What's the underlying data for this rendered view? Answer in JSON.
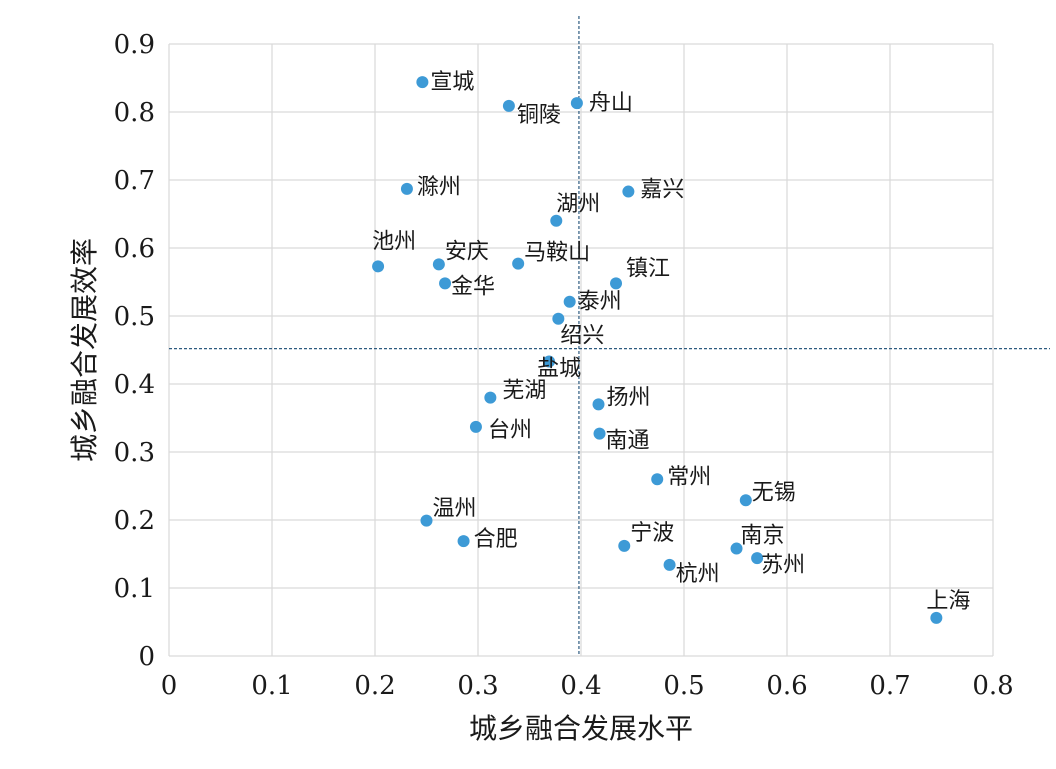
{
  "chart_data": {
    "type": "scatter",
    "xlabel": "城乡融合发展水平",
    "ylabel": "城乡融合发展效率",
    "xlim": [
      0,
      0.8
    ],
    "ylim": [
      0,
      0.9
    ],
    "xticks": [
      0,
      0.1,
      0.2,
      0.3,
      0.4,
      0.5,
      0.6,
      0.7,
      0.8
    ],
    "xtick_labels": [
      "0",
      "0.1",
      "0.2",
      "0.3",
      "0.4",
      "0.5",
      "0.6",
      "0.7",
      "0.8"
    ],
    "yticks": [
      0,
      0.1,
      0.2,
      0.3,
      0.4,
      0.5,
      0.6,
      0.7,
      0.8,
      0.9
    ],
    "ytick_labels": [
      "0",
      "0.1",
      "0.2",
      "0.3",
      "0.4",
      "0.5",
      "0.6",
      "0.7",
      "0.8",
      "0.9"
    ],
    "grid": true,
    "reference_lines": {
      "x": 0.398,
      "y": 0.452
    },
    "marker_color": "#3d9ad6",
    "reference_color": "#2e5b80",
    "points": [
      {
        "label": "宣城",
        "x": 0.246,
        "y": 0.844
      },
      {
        "label": "铜陵",
        "x": 0.33,
        "y": 0.809
      },
      {
        "label": "舟山",
        "x": 0.396,
        "y": 0.813
      },
      {
        "label": "滁州",
        "x": 0.231,
        "y": 0.687
      },
      {
        "label": "嘉兴",
        "x": 0.446,
        "y": 0.683
      },
      {
        "label": "湖州",
        "x": 0.376,
        "y": 0.64
      },
      {
        "label": "池州",
        "x": 0.203,
        "y": 0.573
      },
      {
        "label": "安庆",
        "x": 0.262,
        "y": 0.576
      },
      {
        "label": "马鞍山",
        "x": 0.339,
        "y": 0.577
      },
      {
        "label": "镇江",
        "x": 0.434,
        "y": 0.548
      },
      {
        "label": "金华",
        "x": 0.268,
        "y": 0.548
      },
      {
        "label": "泰州",
        "x": 0.389,
        "y": 0.521
      },
      {
        "label": "绍兴",
        "x": 0.378,
        "y": 0.496
      },
      {
        "label": "盐城",
        "x": 0.369,
        "y": 0.433
      },
      {
        "label": "芜湖",
        "x": 0.312,
        "y": 0.38
      },
      {
        "label": "扬州",
        "x": 0.417,
        "y": 0.37
      },
      {
        "label": "台州",
        "x": 0.298,
        "y": 0.337
      },
      {
        "label": "南通",
        "x": 0.418,
        "y": 0.327
      },
      {
        "label": "常州",
        "x": 0.474,
        "y": 0.26
      },
      {
        "label": "无锡",
        "x": 0.56,
        "y": 0.229
      },
      {
        "label": "温州",
        "x": 0.25,
        "y": 0.199
      },
      {
        "label": "合肥",
        "x": 0.286,
        "y": 0.169
      },
      {
        "label": "宁波",
        "x": 0.442,
        "y": 0.162
      },
      {
        "label": "南京",
        "x": 0.551,
        "y": 0.158
      },
      {
        "label": "苏州",
        "x": 0.571,
        "y": 0.144
      },
      {
        "label": "杭州",
        "x": 0.486,
        "y": 0.134
      },
      {
        "label": "上海",
        "x": 0.745,
        "y": 0.056
      }
    ]
  }
}
